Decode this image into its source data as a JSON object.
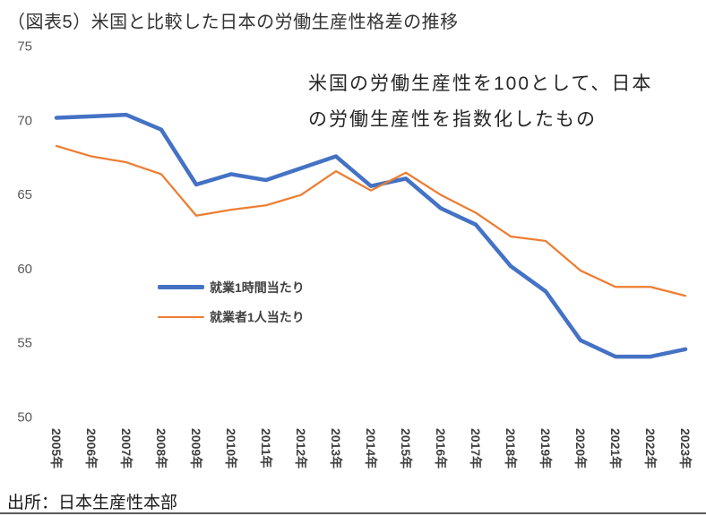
{
  "page": {
    "title": "（図表5）米国と比較した日本の労働生産性格差の推移",
    "annotation_line1": "米国の労働生産性を100として、日本",
    "annotation_line2": "の労働生産性を指数化したもの",
    "source": "出所：日本生産性本部"
  },
  "colors": {
    "series_blue": "#4472C4",
    "series_orange": "#ED7D31",
    "axis_label_gray": "#595959"
  },
  "chart_data": {
    "type": "line",
    "title": "（図表5）米国と比較した日本の労働生産性格差の推移",
    "xlabel": "",
    "ylabel": "",
    "ylim": [
      50,
      75
    ],
    "yticks": [
      50,
      55,
      60,
      65,
      70,
      75
    ],
    "grid": false,
    "legend_position": "inside-left",
    "categories": [
      "2005年",
      "2006年",
      "2007年",
      "2008年",
      "2009年",
      "2010年",
      "2011年",
      "2012年",
      "2013年",
      "2014年",
      "2015年",
      "2016年",
      "2017年",
      "2018年",
      "2019年",
      "2020年",
      "2021年",
      "2022年",
      "2023年"
    ],
    "series": [
      {
        "name": "就業1時間当たり",
        "color": "#4472C4",
        "width": 4.5,
        "values": [
          70.2,
          70.3,
          70.4,
          69.4,
          65.7,
          66.4,
          66.0,
          66.8,
          67.6,
          65.6,
          66.1,
          64.1,
          63.0,
          60.2,
          58.5,
          55.2,
          54.1,
          54.1,
          54.6
        ]
      },
      {
        "name": "就業者1人当たり",
        "color": "#ED7D31",
        "width": 2.25,
        "values": [
          68.3,
          67.6,
          67.2,
          66.4,
          63.6,
          64.0,
          64.3,
          65.0,
          66.6,
          65.3,
          66.5,
          65.0,
          63.8,
          62.2,
          61.9,
          59.9,
          58.8,
          58.8,
          58.2
        ]
      }
    ]
  }
}
